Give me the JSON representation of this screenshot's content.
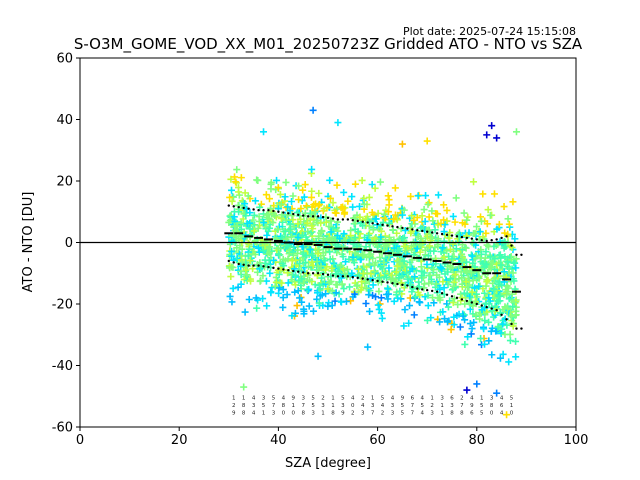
{
  "chart_data": {
    "type": "scatter",
    "title": "S-O3M_GOME_VOD_XX_M01_20250723Z Gridded ATO - NTO vs SZA",
    "plot_date": "Plot date: 2025-07-24 15:15:08",
    "xlabel": "SZA [degree]",
    "ylabel": "ATO - NTO [DU]",
    "xlim": [
      0,
      100
    ],
    "ylim": [
      -60,
      60
    ],
    "xticks": [
      0,
      20,
      40,
      60,
      80,
      100
    ],
    "yticks": [
      -60,
      -40,
      -20,
      0,
      20,
      40,
      60
    ],
    "grid": false,
    "legend": "none",
    "zero_line": 0,
    "colors": {
      "scatter_palette": [
        "#00bfff",
        "#00e5ff",
        "#40ffb0",
        "#80ff80",
        "#c0ff40",
        "#ffe000",
        "#ffc000",
        "#0080ff",
        "#0000d0"
      ],
      "binned_stats": "#000000"
    },
    "marker": "plus",
    "scatter_envelope": {
      "sza": [
        30,
        35,
        40,
        45,
        50,
        55,
        60,
        65,
        70,
        75,
        80,
        85,
        88
      ],
      "upper": [
        28,
        27,
        26,
        25,
        24,
        23,
        22,
        21,
        20,
        20,
        20,
        19,
        18
      ],
      "lower": [
        -25,
        -27,
        -28,
        -29,
        -29,
        -29,
        -29,
        -30,
        -31,
        -33,
        -40,
        -45,
        -50
      ]
    },
    "binned_mean": {
      "sza": [
        30,
        32,
        34,
        36,
        38,
        40,
        42,
        44,
        46,
        48,
        50,
        52,
        54,
        56,
        58,
        60,
        62,
        64,
        66,
        68,
        70,
        72,
        74,
        76,
        78,
        80,
        82,
        84,
        86,
        88
      ],
      "values": [
        3,
        3,
        2,
        1.5,
        1,
        0.5,
        0,
        -0.5,
        -0.5,
        -0.8,
        -1.5,
        -2,
        -2,
        -2.2,
        -2.5,
        -3,
        -3.5,
        -4,
        -4.5,
        -5,
        -5.5,
        -6,
        -6.5,
        -7,
        -8,
        -9,
        -10,
        -10,
        -12,
        -16
      ]
    },
    "binned_upper_sigma": {
      "sza": [
        30,
        32,
        34,
        36,
        38,
        40,
        42,
        44,
        46,
        48,
        50,
        52,
        54,
        56,
        58,
        60,
        62,
        64,
        66,
        68,
        70,
        72,
        74,
        76,
        78,
        80,
        82,
        84,
        86,
        88
      ],
      "values": [
        12,
        11.5,
        11,
        10.5,
        10.5,
        10,
        9.5,
        9,
        8.5,
        8.5,
        8,
        7.5,
        7.5,
        7,
        6.5,
        6,
        5.5,
        5,
        4.5,
        4,
        3.5,
        3,
        2.5,
        2,
        1.5,
        1,
        0.5,
        1,
        2,
        -4
      ]
    },
    "binned_lower_sigma": {
      "sza": [
        30,
        32,
        34,
        36,
        38,
        40,
        42,
        44,
        46,
        48,
        50,
        52,
        54,
        56,
        58,
        60,
        62,
        64,
        66,
        68,
        70,
        72,
        74,
        76,
        78,
        80,
        82,
        84,
        86,
        88
      ],
      "values": [
        -6,
        -7,
        -7.5,
        -7.5,
        -8,
        -8.5,
        -9,
        -9.5,
        -10,
        -10,
        -10.5,
        -11,
        -11,
        -11.5,
        -12,
        -12.5,
        -13,
        -13.5,
        -14,
        -15,
        -15.5,
        -16,
        -17,
        -18,
        -19,
        -20,
        -21,
        -22,
        -25,
        -28
      ]
    },
    "bin_count_labels": {
      "sza": [
        31,
        33,
        35,
        37,
        39,
        41,
        43,
        45,
        47,
        49,
        51,
        53,
        55,
        57,
        59,
        61,
        63,
        65,
        67,
        69,
        71,
        73,
        75,
        77,
        79,
        81,
        83,
        85,
        87
      ],
      "row1": [
        "1",
        "1",
        "4",
        "3",
        "5",
        "4",
        "9",
        "3",
        "5",
        "2",
        "1",
        "5",
        "4",
        "2",
        "1",
        "5",
        "4",
        "9",
        "6",
        "4",
        "1",
        "3",
        "6",
        "2",
        "4",
        "1",
        "3",
        "4",
        "5"
      ],
      "row2": [
        "2",
        "8",
        "3",
        "5",
        "7",
        "8",
        "1",
        "7",
        "5",
        "3",
        "1",
        "3",
        "0",
        "4",
        "3",
        "4",
        "3",
        "5",
        "7",
        "5",
        "2",
        "1",
        "3",
        "7",
        "9",
        "5",
        "8",
        "6",
        "1"
      ],
      "row3": [
        "9",
        "8",
        "4",
        "1",
        "3",
        "0",
        "0",
        "8",
        "3",
        "1",
        "8",
        "9",
        "2",
        "3",
        "7",
        "2",
        "3",
        "5",
        "7",
        "4",
        "3",
        "1",
        "8",
        "8",
        "6",
        "5",
        "0",
        "4",
        "0"
      ]
    }
  }
}
